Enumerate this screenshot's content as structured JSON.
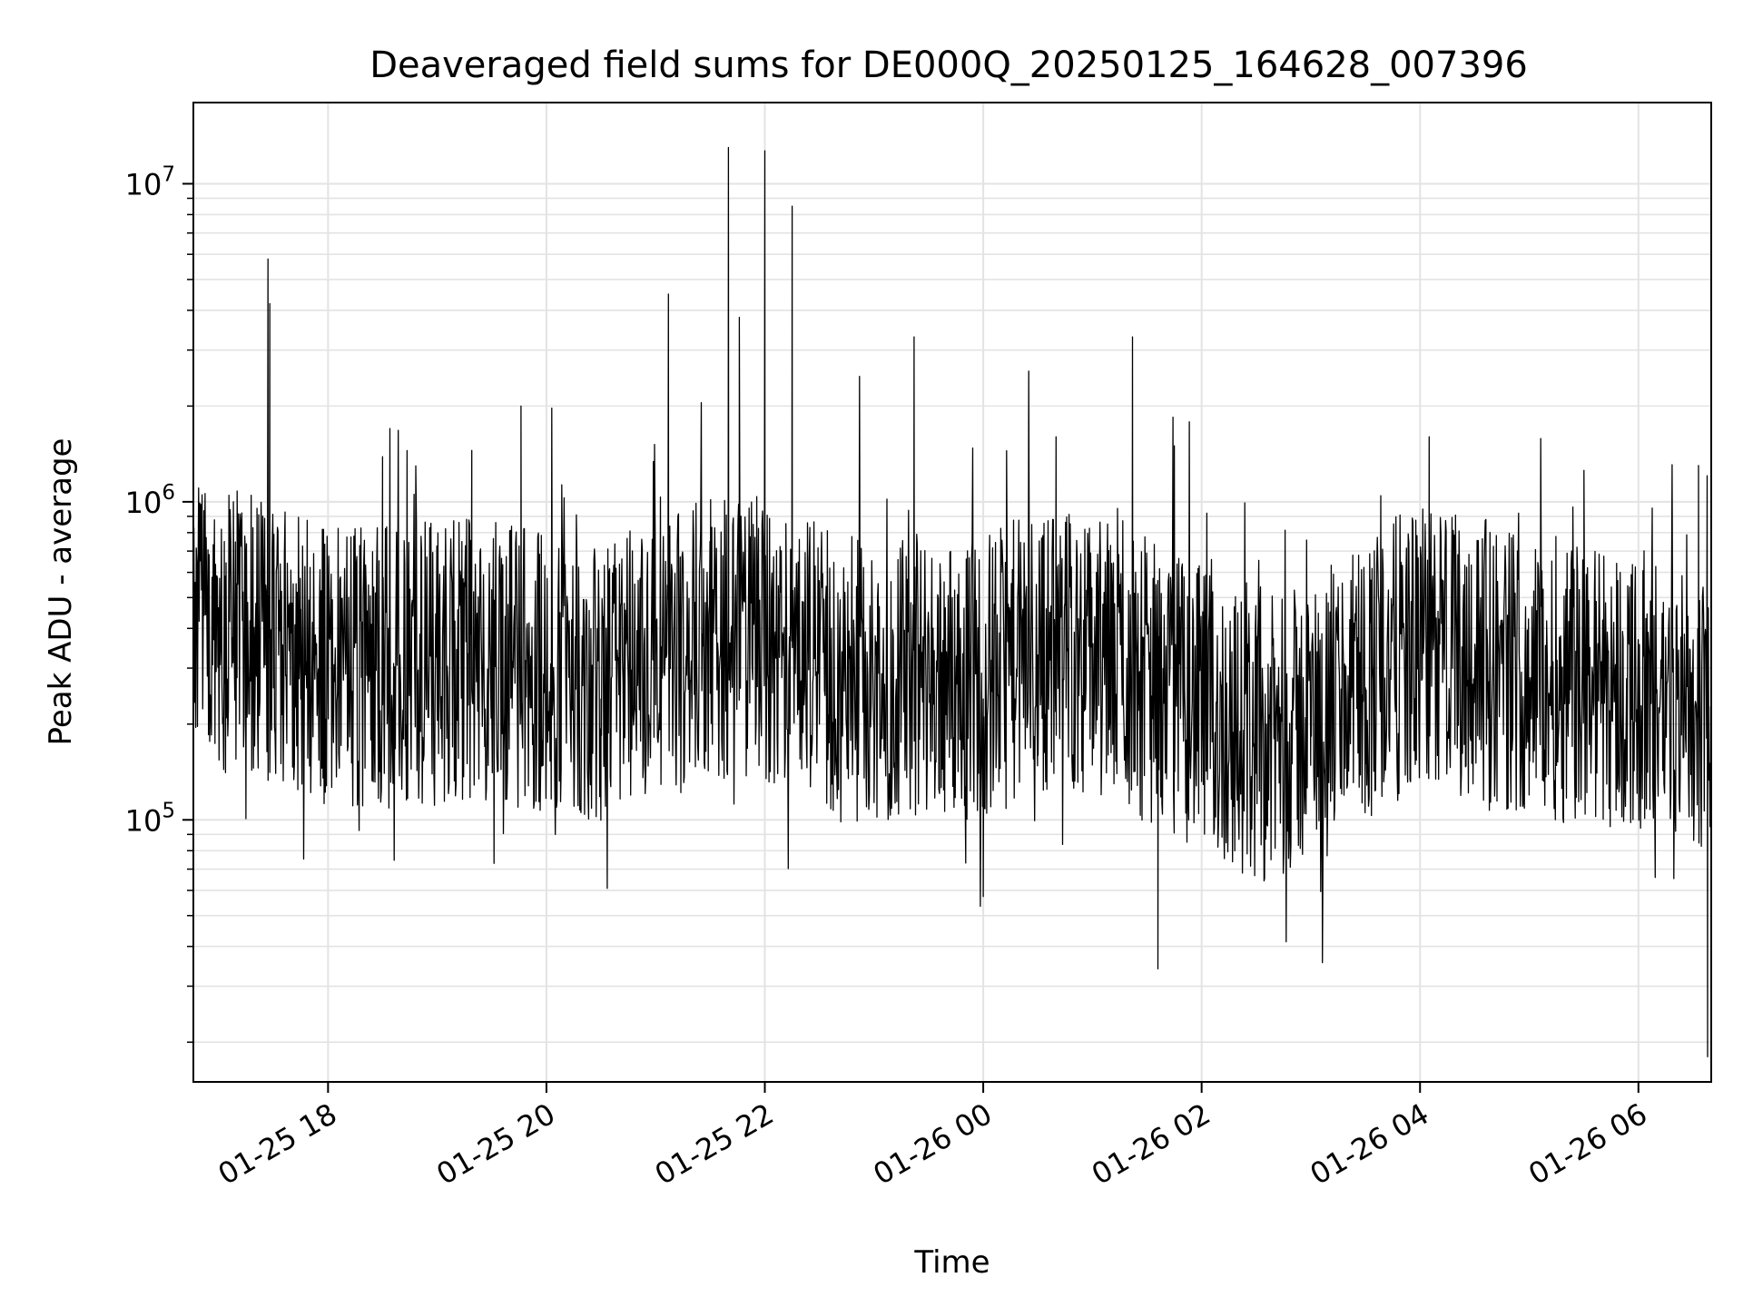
{
  "chart_data": {
    "type": "line",
    "title": "Deaveraged field sums for DE000Q_20250125_164628_007396",
    "xlabel": "Time",
    "ylabel": "Peak ADU - average",
    "x_range": [
      "01-25 16:46",
      "01-26 06:40"
    ],
    "yscale": "log",
    "ylim": [
      15000,
      18000000
    ],
    "grid": true,
    "legend": "none",
    "line_color": "#000000",
    "x_ticks": [
      {
        "time": "01-25 18:00",
        "label": "01-25 18"
      },
      {
        "time": "01-25 20:00",
        "label": "01-25 20"
      },
      {
        "time": "01-25 22:00",
        "label": "01-25 22"
      },
      {
        "time": "01-26 00:00",
        "label": "01-26 00"
      },
      {
        "time": "01-26 02:00",
        "label": "01-26 02"
      },
      {
        "time": "01-26 04:00",
        "label": "01-26 04"
      },
      {
        "time": "01-26 06:00",
        "label": "01-26 06"
      }
    ],
    "y_ticks": [
      {
        "value": 100000,
        "base": "10",
        "exp": "5"
      },
      {
        "value": 1000000,
        "base": "10",
        "exp": "6"
      },
      {
        "value": 10000000,
        "base": "10",
        "exp": "7"
      }
    ],
    "series": [
      {
        "points": [
          [
            "01-25 16:46",
            380000
          ],
          [
            "01-25 16:52",
            440000
          ],
          [
            "01-25 16:58",
            460000
          ],
          [
            "01-25 17:03",
            750000
          ],
          [
            "01-25 17:08",
            1000000
          ],
          [
            "01-25 17:10",
            280000
          ],
          [
            "01-25 17:20",
            300000
          ],
          [
            "01-25 17:27",
            5800000
          ],
          [
            "01-25 17:28",
            4200000
          ],
          [
            "01-25 17:30",
            260000
          ],
          [
            "01-25 17:45",
            240000
          ],
          [
            "01-25 18:00",
            250000
          ],
          [
            "01-25 18:30",
            230000
          ],
          [
            "01-25 18:34",
            1700000
          ],
          [
            "01-25 19:00",
            220000
          ],
          [
            "01-25 19:19",
            1450000
          ],
          [
            "01-25 19:30",
            210000
          ],
          [
            "01-25 19:46",
            2000000
          ],
          [
            "01-25 20:00",
            200000
          ],
          [
            "01-25 20:30",
            240000
          ],
          [
            "01-25 21:00",
            230000
          ],
          [
            "01-25 21:07",
            4500000
          ],
          [
            "01-25 21:30",
            250000
          ],
          [
            "01-25 21:40",
            13000000
          ],
          [
            "01-25 21:46",
            3800000
          ],
          [
            "01-25 21:50",
            220000
          ],
          [
            "01-25 22:00",
            12700000
          ],
          [
            "01-25 22:15",
            8500000
          ],
          [
            "01-25 22:30",
            200000
          ],
          [
            "01-25 23:00",
            190000
          ],
          [
            "01-25 23:22",
            3300000
          ],
          [
            "01-25 23:40",
            210000
          ],
          [
            "01-26 00:00",
            240000
          ],
          [
            "01-26 00:30",
            330000
          ],
          [
            "01-26 00:40",
            1600000
          ],
          [
            "01-26 01:00",
            260000
          ],
          [
            "01-26 01:22",
            3300000
          ],
          [
            "01-26 01:36",
            34000
          ],
          [
            "01-26 01:45",
            1500000
          ],
          [
            "01-26 02:00",
            160000
          ],
          [
            "01-26 02:30",
            140000
          ],
          [
            "01-26 03:00",
            210000
          ],
          [
            "01-26 03:30",
            260000
          ],
          [
            "01-26 04:00",
            300000
          ],
          [
            "01-26 04:05",
            1600000
          ],
          [
            "01-26 04:30",
            290000
          ],
          [
            "01-26 05:00",
            280000
          ],
          [
            "01-26 05:30",
            270000
          ],
          [
            "01-26 06:00",
            270000
          ],
          [
            "01-26 06:33",
            1300000
          ],
          [
            "01-26 06:36",
            300000
          ],
          [
            "01-26 06:38",
            18000
          ],
          [
            "01-26 06:40",
            110000
          ]
        ]
      }
    ]
  }
}
